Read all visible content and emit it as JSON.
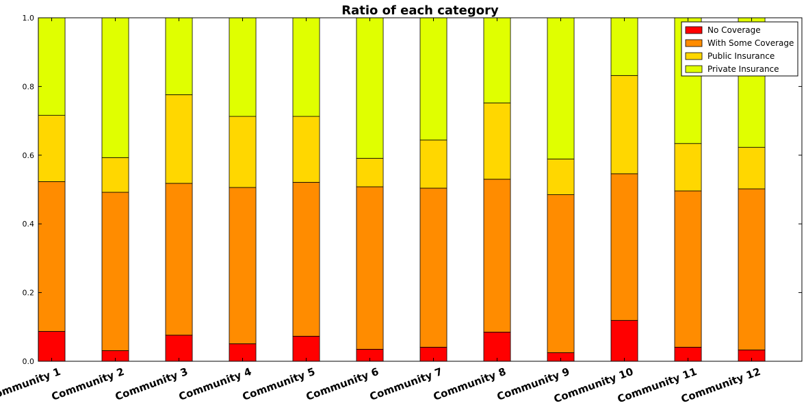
{
  "chart_data": {
    "type": "bar",
    "stacked": true,
    "title": "Ratio of each category",
    "xlabel": "",
    "ylabel": "",
    "ylim": [
      0,
      1.0
    ],
    "yticks": [
      "0.0",
      "0.2",
      "0.4",
      "0.6",
      "0.8",
      "1.0"
    ],
    "categories": [
      "Community 1",
      "Community 2",
      "Community 3",
      "Community 4",
      "Community 5",
      "Community 6",
      "Community 7",
      "Community 8",
      "Community 9",
      "Community 10",
      "Community 11",
      "Community 12"
    ],
    "series": [
      {
        "name": "No Coverage",
        "color": "#ff0000",
        "values": [
          0.087,
          0.031,
          0.076,
          0.051,
          0.073,
          0.035,
          0.041,
          0.085,
          0.025,
          0.119,
          0.041,
          0.033
        ]
      },
      {
        "name": "With Some Coverage",
        "color": "#ff8c00",
        "values": [
          0.436,
          0.461,
          0.442,
          0.455,
          0.448,
          0.473,
          0.463,
          0.445,
          0.46,
          0.427,
          0.455,
          0.469
        ]
      },
      {
        "name": "Public Insurance",
        "color": "#ffd700",
        "values": [
          0.193,
          0.101,
          0.258,
          0.207,
          0.192,
          0.083,
          0.14,
          0.222,
          0.104,
          0.286,
          0.138,
          0.121
        ]
      },
      {
        "name": "Private Insurance",
        "color": "#e0ff00",
        "values": [
          0.284,
          0.407,
          0.224,
          0.287,
          0.287,
          0.409,
          0.356,
          0.248,
          0.411,
          0.168,
          0.366,
          0.377
        ]
      }
    ],
    "legend": "top-right",
    "grid": false
  }
}
